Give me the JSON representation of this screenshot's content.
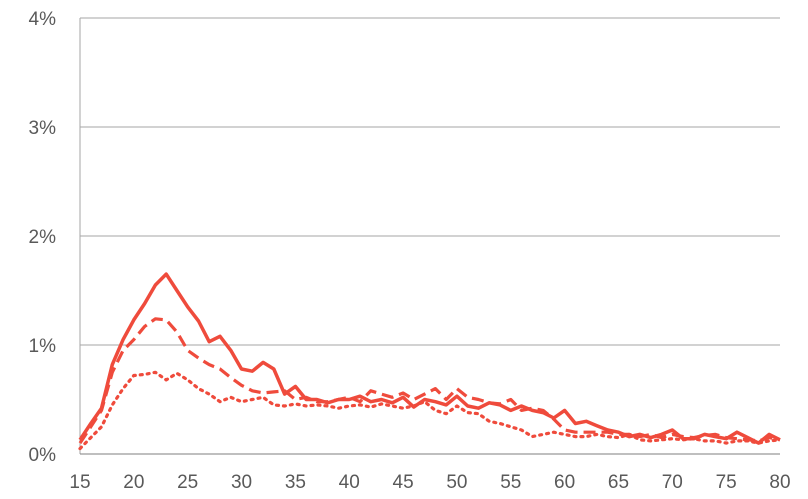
{
  "chart_data": {
    "type": "line",
    "title": "",
    "xlabel": "",
    "ylabel": "",
    "xlim": [
      15,
      80
    ],
    "ylim": [
      0,
      4
    ],
    "x_ticks": [
      15,
      20,
      25,
      30,
      35,
      40,
      45,
      50,
      55,
      60,
      65,
      70,
      75,
      80
    ],
    "y_ticks": [
      0,
      1,
      2,
      3,
      4
    ],
    "y_tick_labels": [
      "0%",
      "1%",
      "2%",
      "3%",
      "4%"
    ],
    "grid": "horizontal",
    "legend": "none",
    "colors": {
      "series": "#ef4b3c",
      "grid": "#a6a6a6",
      "axis": "#7f7f7f",
      "tick_text": "#595959"
    },
    "x": [
      15,
      16,
      17,
      18,
      19,
      20,
      21,
      22,
      23,
      24,
      25,
      26,
      27,
      28,
      29,
      30,
      31,
      32,
      33,
      34,
      35,
      36,
      37,
      38,
      39,
      40,
      41,
      42,
      43,
      44,
      45,
      46,
      47,
      48,
      49,
      50,
      51,
      52,
      53,
      54,
      55,
      56,
      57,
      58,
      59,
      60,
      61,
      62,
      63,
      64,
      65,
      66,
      67,
      68,
      69,
      70,
      71,
      72,
      73,
      74,
      75,
      76,
      77,
      78,
      79,
      80
    ],
    "series": [
      {
        "style": "solid",
        "values": [
          0.13,
          0.28,
          0.42,
          0.82,
          1.05,
          1.23,
          1.38,
          1.55,
          1.65,
          1.5,
          1.35,
          1.22,
          1.03,
          1.08,
          0.95,
          0.78,
          0.76,
          0.84,
          0.78,
          0.55,
          0.62,
          0.5,
          0.5,
          0.47,
          0.5,
          0.5,
          0.53,
          0.48,
          0.5,
          0.47,
          0.52,
          0.43,
          0.5,
          0.48,
          0.45,
          0.53,
          0.44,
          0.42,
          0.47,
          0.45,
          0.4,
          0.44,
          0.4,
          0.38,
          0.33,
          0.4,
          0.28,
          0.3,
          0.26,
          0.22,
          0.2,
          0.16,
          0.18,
          0.15,
          0.18,
          0.22,
          0.14,
          0.14,
          0.18,
          0.16,
          0.14,
          0.2,
          0.15,
          0.1,
          0.18,
          0.13
        ]
      },
      {
        "style": "dashed",
        "values": [
          0.1,
          0.25,
          0.4,
          0.75,
          0.95,
          1.05,
          1.17,
          1.24,
          1.23,
          1.12,
          0.95,
          0.88,
          0.82,
          0.78,
          0.7,
          0.63,
          0.58,
          0.56,
          0.57,
          0.58,
          0.5,
          0.52,
          0.48,
          0.48,
          0.5,
          0.52,
          0.48,
          0.58,
          0.55,
          0.52,
          0.56,
          0.5,
          0.55,
          0.6,
          0.5,
          0.6,
          0.52,
          0.5,
          0.47,
          0.46,
          0.5,
          0.4,
          0.42,
          0.4,
          0.32,
          0.22,
          0.2,
          0.2,
          0.2,
          0.2,
          0.18,
          0.18,
          0.16,
          0.18,
          0.15,
          0.18,
          0.16,
          0.15,
          0.17,
          0.18,
          0.15,
          0.14,
          0.13,
          0.12,
          0.15,
          0.13
        ]
      },
      {
        "style": "dotted",
        "values": [
          0.05,
          0.15,
          0.25,
          0.45,
          0.6,
          0.72,
          0.73,
          0.75,
          0.68,
          0.74,
          0.68,
          0.6,
          0.55,
          0.48,
          0.52,
          0.48,
          0.5,
          0.52,
          0.45,
          0.44,
          0.46,
          0.44,
          0.45,
          0.44,
          0.42,
          0.44,
          0.45,
          0.43,
          0.46,
          0.44,
          0.42,
          0.44,
          0.48,
          0.4,
          0.37,
          0.44,
          0.38,
          0.37,
          0.3,
          0.28,
          0.25,
          0.22,
          0.16,
          0.18,
          0.2,
          0.18,
          0.16,
          0.16,
          0.18,
          0.16,
          0.15,
          0.18,
          0.13,
          0.12,
          0.13,
          0.14,
          0.13,
          0.14,
          0.12,
          0.12,
          0.1,
          0.12,
          0.12,
          0.1,
          0.12,
          0.13
        ]
      }
    ]
  }
}
